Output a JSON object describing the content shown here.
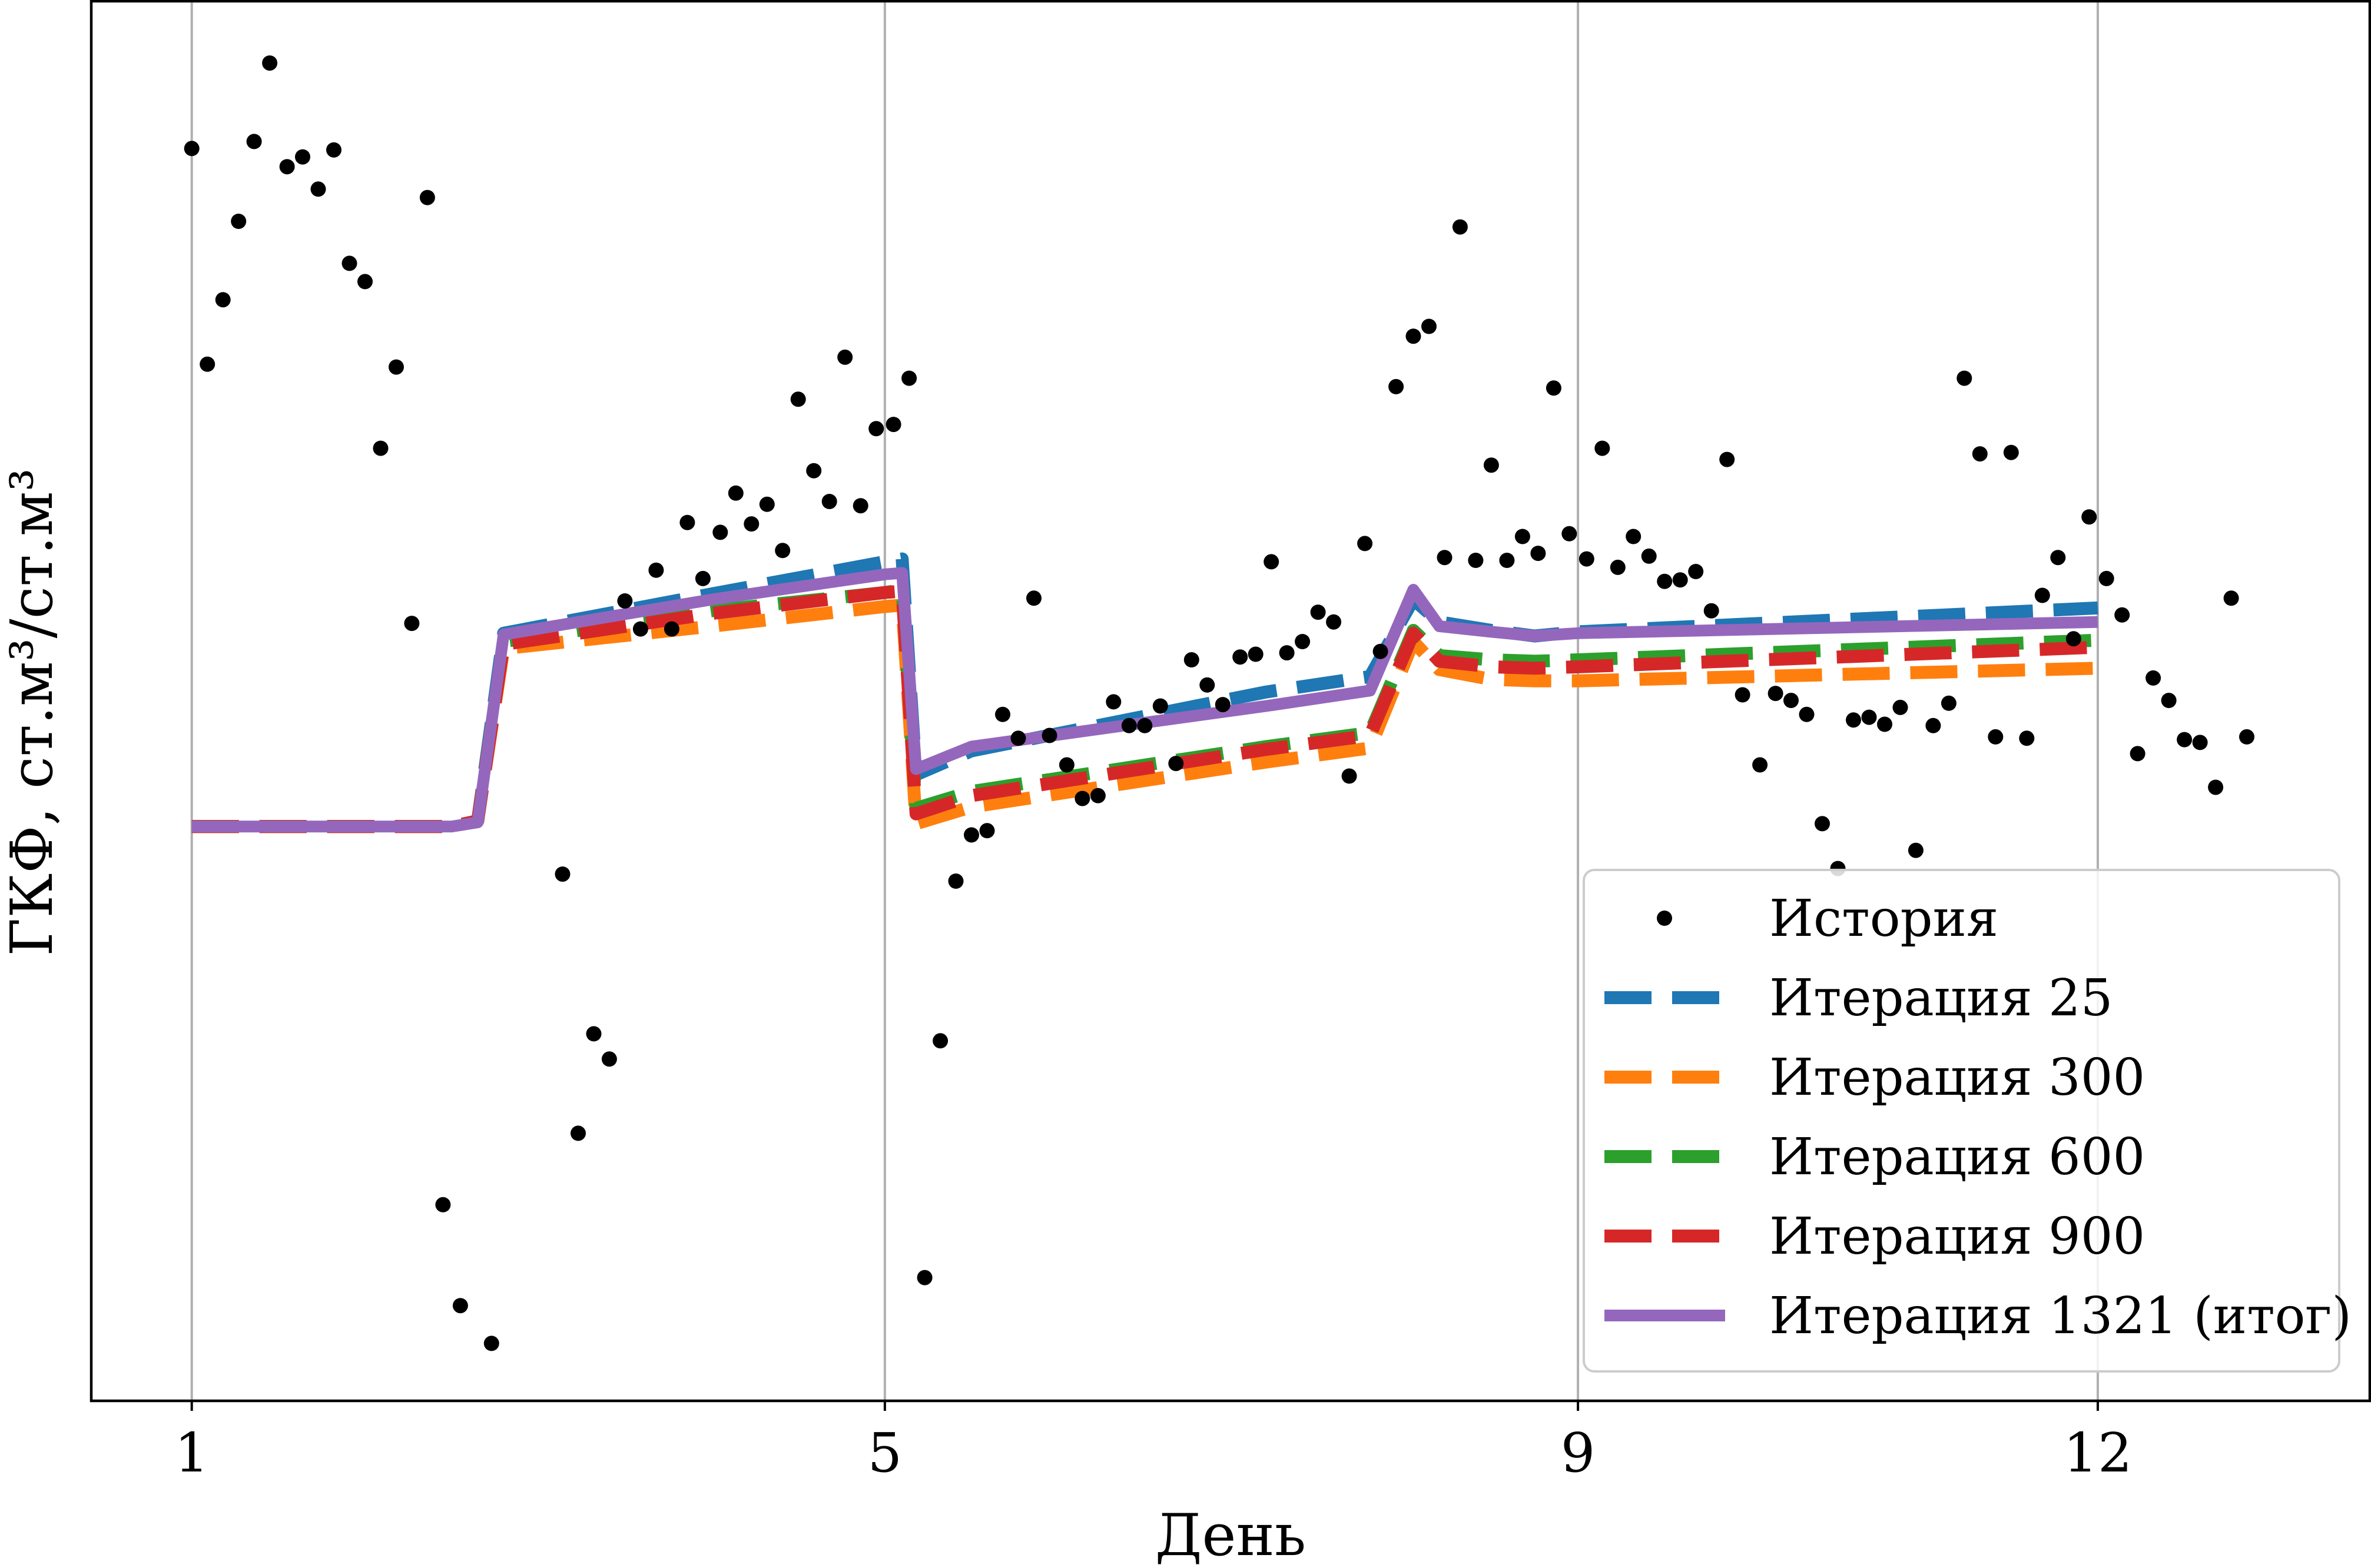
{
  "chart_data": {
    "type": "line",
    "xlabel": "День",
    "ylabel": "ГКФ, ст.м³/ст.м³",
    "xlim": [
      0.42,
      13.57
    ],
    "ylim": [
      0,
      1
    ],
    "xticks": [
      1,
      5,
      9,
      12
    ],
    "xtick_labels": [
      "1",
      "5",
      "9",
      "12"
    ],
    "yticks_shown": false,
    "grid": "x",
    "legend_position": "lower right",
    "scatter": {
      "name": "История",
      "color": "#000000",
      "points": [
        [
          1.0,
          0.894
        ],
        [
          1.09,
          0.74
        ],
        [
          1.18,
          0.786
        ],
        [
          1.27,
          0.842
        ],
        [
          1.36,
          0.899
        ],
        [
          1.45,
          0.955
        ],
        [
          1.55,
          0.881
        ],
        [
          1.64,
          0.888
        ],
        [
          1.73,
          0.865
        ],
        [
          1.82,
          0.893
        ],
        [
          1.91,
          0.812
        ],
        [
          2.0,
          0.799
        ],
        [
          2.09,
          0.68
        ],
        [
          2.18,
          0.738
        ],
        [
          2.27,
          0.555
        ],
        [
          2.36,
          0.859
        ],
        [
          2.45,
          0.14
        ],
        [
          2.55,
          0.068
        ],
        [
          2.73,
          0.041
        ],
        [
          3.14,
          0.376
        ],
        [
          3.23,
          0.191
        ],
        [
          3.32,
          0.262
        ],
        [
          3.41,
          0.244
        ],
        [
          3.5,
          0.571
        ],
        [
          3.59,
          0.551
        ],
        [
          3.68,
          0.593
        ],
        [
          3.77,
          0.551
        ],
        [
          3.86,
          0.627
        ],
        [
          3.95,
          0.587
        ],
        [
          4.05,
          0.62
        ],
        [
          4.14,
          0.648
        ],
        [
          4.23,
          0.626
        ],
        [
          4.32,
          0.64
        ],
        [
          4.41,
          0.607
        ],
        [
          4.5,
          0.715
        ],
        [
          4.59,
          0.664
        ],
        [
          4.68,
          0.642
        ],
        [
          4.77,
          0.745
        ],
        [
          4.86,
          0.639
        ],
        [
          4.95,
          0.694
        ],
        [
          5.05,
          0.697
        ],
        [
          5.14,
          0.73
        ],
        [
          5.23,
          0.088
        ],
        [
          5.32,
          0.257
        ],
        [
          5.41,
          0.371
        ],
        [
          5.5,
          0.404
        ],
        [
          5.59,
          0.407
        ],
        [
          5.68,
          0.49
        ],
        [
          5.77,
          0.473
        ],
        [
          5.86,
          0.573
        ],
        [
          5.95,
          0.475
        ],
        [
          6.05,
          0.454
        ],
        [
          6.14,
          0.43
        ],
        [
          6.23,
          0.432
        ],
        [
          6.32,
          0.499
        ],
        [
          6.41,
          0.482
        ],
        [
          6.5,
          0.482
        ],
        [
          6.59,
          0.496
        ],
        [
          6.68,
          0.455
        ],
        [
          6.77,
          0.529
        ],
        [
          6.86,
          0.511
        ],
        [
          6.95,
          0.497
        ],
        [
          7.05,
          0.531
        ],
        [
          7.14,
          0.533
        ],
        [
          7.23,
          0.599
        ],
        [
          7.32,
          0.534
        ],
        [
          7.41,
          0.542
        ],
        [
          7.5,
          0.563
        ],
        [
          7.59,
          0.556
        ],
        [
          7.68,
          0.446
        ],
        [
          7.77,
          0.612
        ],
        [
          7.86,
          0.535
        ],
        [
          7.95,
          0.724
        ],
        [
          8.05,
          0.76
        ],
        [
          8.14,
          0.767
        ],
        [
          8.23,
          0.602
        ],
        [
          8.32,
          0.838
        ],
        [
          8.41,
          0.6
        ],
        [
          8.5,
          0.668
        ],
        [
          8.59,
          0.6
        ],
        [
          8.68,
          0.617
        ],
        [
          8.77,
          0.605
        ],
        [
          8.86,
          0.723
        ],
        [
          8.95,
          0.619
        ],
        [
          9.05,
          0.601
        ],
        [
          9.14,
          0.68
        ],
        [
          9.23,
          0.595
        ],
        [
          9.32,
          0.617
        ],
        [
          9.41,
          0.603
        ],
        [
          9.5,
          0.585
        ],
        [
          9.59,
          0.586
        ],
        [
          9.68,
          0.592
        ],
        [
          9.77,
          0.564
        ],
        [
          9.86,
          0.672
        ],
        [
          9.95,
          0.504
        ],
        [
          10.05,
          0.454
        ],
        [
          10.14,
          0.505
        ],
        [
          10.23,
          0.5
        ],
        [
          10.32,
          0.49
        ],
        [
          10.41,
          0.412
        ],
        [
          10.5,
          0.38
        ],
        [
          10.59,
          0.486
        ],
        [
          10.68,
          0.488
        ],
        [
          10.77,
          0.483
        ],
        [
          10.86,
          0.495
        ],
        [
          10.95,
          0.393
        ],
        [
          11.05,
          0.482
        ],
        [
          11.14,
          0.498
        ],
        [
          11.23,
          0.73
        ],
        [
          11.32,
          0.676
        ],
        [
          11.41,
          0.474
        ],
        [
          11.5,
          0.677
        ],
        [
          11.59,
          0.473
        ],
        [
          11.68,
          0.575
        ],
        [
          11.77,
          0.602
        ],
        [
          11.86,
          0.544
        ],
        [
          11.95,
          0.631
        ],
        [
          12.05,
          0.587
        ],
        [
          12.14,
          0.561
        ],
        [
          12.23,
          0.462
        ],
        [
          12.32,
          0.516
        ],
        [
          12.41,
          0.5
        ],
        [
          12.5,
          0.472
        ],
        [
          12.59,
          0.47
        ],
        [
          12.68,
          0.438
        ],
        [
          12.77,
          0.573
        ],
        [
          12.86,
          0.474
        ]
      ]
    },
    "series": [
      {
        "name": "Итерация 25",
        "color": "#1f77b4",
        "style": "dashed",
        "x": [
          1,
          2.5,
          2.65,
          2.8,
          4.0,
          5.0,
          5.1,
          5.18,
          5.5,
          7.2,
          7.8,
          8.05,
          8.2,
          8.5,
          8.75,
          9.0,
          12.0
        ],
        "y": [
          0.41,
          0.41,
          0.414,
          0.548,
          0.576,
          0.599,
          0.601,
          0.447,
          0.464,
          0.506,
          0.517,
          0.572,
          0.556,
          0.55,
          0.546,
          0.549,
          0.566
        ]
      },
      {
        "name": "Итерация 300",
        "color": "#ff7f0e",
        "style": "dashed",
        "x": [
          1,
          2.5,
          2.65,
          2.8,
          4.0,
          5.0,
          5.1,
          5.18,
          5.5,
          7.2,
          7.8,
          8.05,
          8.2,
          8.5,
          8.75,
          9.0,
          12.0
        ],
        "y": [
          0.41,
          0.41,
          0.414,
          0.537,
          0.553,
          0.567,
          0.568,
          0.412,
          0.424,
          0.456,
          0.466,
          0.542,
          0.522,
          0.515,
          0.514,
          0.514,
          0.523
        ]
      },
      {
        "name": "Итерация 600",
        "color": "#2ca02c",
        "style": "dashed",
        "x": [
          1,
          2.5,
          2.65,
          2.8,
          4.0,
          5.0,
          5.1,
          5.18,
          5.5,
          7.2,
          7.8,
          8.05,
          8.2,
          8.5,
          8.75,
          9.0,
          12.0
        ],
        "y": [
          0.41,
          0.41,
          0.414,
          0.542,
          0.564,
          0.577,
          0.579,
          0.423,
          0.435,
          0.467,
          0.477,
          0.55,
          0.532,
          0.529,
          0.528,
          0.529,
          0.543
        ]
      },
      {
        "name": "Итерация 900",
        "color": "#d62728",
        "style": "dashed",
        "x": [
          1,
          2.5,
          2.65,
          2.8,
          4.0,
          5.0,
          5.1,
          5.18,
          5.5,
          7.2,
          7.8,
          8.05,
          8.2,
          8.5,
          8.75,
          9.0,
          12.0
        ],
        "y": [
          0.41,
          0.41,
          0.414,
          0.54,
          0.562,
          0.577,
          0.578,
          0.419,
          0.432,
          0.465,
          0.475,
          0.548,
          0.528,
          0.524,
          0.523,
          0.524,
          0.538
        ]
      },
      {
        "name": "Итерация 1321 (итог)",
        "color": "#9467bd",
        "style": "solid",
        "x": [
          1,
          2.5,
          2.65,
          2.8,
          4.0,
          5.0,
          5.1,
          5.18,
          5.5,
          7.2,
          7.8,
          8.05,
          8.2,
          8.5,
          8.75,
          9.0,
          12.0
        ],
        "y": [
          0.41,
          0.41,
          0.413,
          0.547,
          0.572,
          0.59,
          0.591,
          0.451,
          0.467,
          0.496,
          0.507,
          0.579,
          0.553,
          0.549,
          0.546,
          0.548,
          0.556
        ]
      }
    ]
  }
}
